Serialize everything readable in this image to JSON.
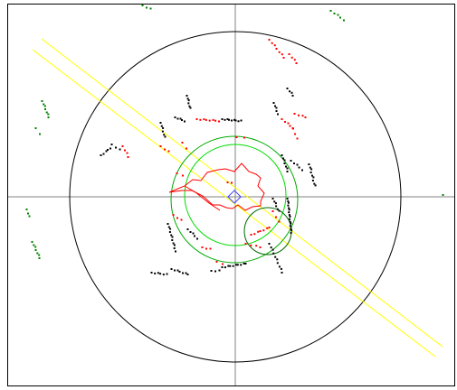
{
  "scene": {
    "colors": {
      "background": "#ffffff",
      "frame": "#000000",
      "axes": "#808080",
      "range_circle": "#000000",
      "path": "#ff0000",
      "robot": "#4040ff",
      "laser_line": "#ffff00",
      "circle_light": "#00cc00",
      "circle_dark": "#007700",
      "point_black": "#000000",
      "point_red": "#ff0000",
      "point_green": "#008000"
    },
    "elements": {
      "robot": "robot-marker",
      "path": "red-trajectory",
      "laser": "yellow-laser-band"
    }
  }
}
